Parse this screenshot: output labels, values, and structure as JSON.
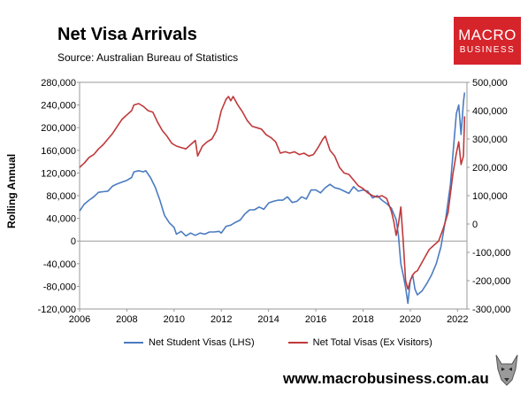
{
  "header": {
    "title": "Net Visa Arrivals",
    "subtitle": "Source: Australian Bureau of Statistics"
  },
  "logo": {
    "line1": "MACRO",
    "line2": "BUSINESS"
  },
  "footer": {
    "url": "www.macrobusiness.com.au"
  },
  "colors": {
    "student": "#4a7cc0",
    "total": "#c0393b",
    "logo": "#d6242b"
  },
  "chart_data": {
    "type": "line",
    "title": "Net Visa Arrivals",
    "ylabel": "Rolling Annual",
    "ylim_left": [
      -120000,
      280000
    ],
    "ylim_right": [
      -300000,
      500000
    ],
    "xlim": [
      2006,
      2022.4
    ],
    "x_ticks": [
      "2006",
      "2008",
      "2010",
      "2012",
      "2014",
      "2016",
      "2018",
      "2020",
      "2022"
    ],
    "y_ticks_left": [
      "280,000",
      "240,000",
      "200,000",
      "160,000",
      "120,000",
      "80,000",
      "40,000",
      "0",
      "-40,000",
      "-80,000",
      "-120,000"
    ],
    "y_ticks_right": [
      "500,000",
      "400,000",
      "300,000",
      "200,000",
      "100,000",
      "0",
      "-100,000",
      "-200,000",
      "-300,000"
    ],
    "legend_position": "bottom",
    "series": [
      {
        "name": "Net Student Visas (LHS)",
        "axis": "left",
        "points": [
          [
            2006.0,
            53000
          ],
          [
            2006.2,
            65000
          ],
          [
            2006.4,
            72000
          ],
          [
            2006.6,
            78000
          ],
          [
            2006.8,
            86000
          ],
          [
            2007.0,
            87000
          ],
          [
            2007.2,
            88000
          ],
          [
            2007.4,
            97000
          ],
          [
            2007.6,
            101000
          ],
          [
            2007.8,
            104000
          ],
          [
            2008.0,
            107000
          ],
          [
            2008.2,
            112000
          ],
          [
            2008.3,
            122000
          ],
          [
            2008.5,
            124000
          ],
          [
            2008.7,
            122000
          ],
          [
            2008.8,
            124000
          ],
          [
            2009.0,
            112000
          ],
          [
            2009.2,
            95000
          ],
          [
            2009.4,
            72000
          ],
          [
            2009.5,
            58000
          ],
          [
            2009.6,
            45000
          ],
          [
            2009.8,
            32000
          ],
          [
            2010.0,
            24000
          ],
          [
            2010.1,
            12000
          ],
          [
            2010.3,
            17000
          ],
          [
            2010.5,
            9000
          ],
          [
            2010.7,
            14000
          ],
          [
            2010.9,
            10000
          ],
          [
            2011.1,
            14000
          ],
          [
            2011.3,
            12000
          ],
          [
            2011.5,
            16000
          ],
          [
            2011.7,
            16000
          ],
          [
            2011.9,
            17000
          ],
          [
            2012.0,
            14000
          ],
          [
            2012.2,
            26000
          ],
          [
            2012.4,
            28000
          ],
          [
            2012.6,
            33000
          ],
          [
            2012.8,
            37000
          ],
          [
            2013.0,
            48000
          ],
          [
            2013.2,
            55000
          ],
          [
            2013.4,
            55000
          ],
          [
            2013.6,
            60000
          ],
          [
            2013.8,
            56000
          ],
          [
            2014.0,
            67000
          ],
          [
            2014.2,
            70000
          ],
          [
            2014.4,
            72000
          ],
          [
            2014.6,
            72000
          ],
          [
            2014.8,
            78000
          ],
          [
            2015.0,
            68000
          ],
          [
            2015.2,
            70000
          ],
          [
            2015.4,
            78000
          ],
          [
            2015.6,
            74000
          ],
          [
            2015.8,
            90000
          ],
          [
            2016.0,
            90000
          ],
          [
            2016.2,
            85000
          ],
          [
            2016.4,
            94000
          ],
          [
            2016.6,
            100000
          ],
          [
            2016.8,
            94000
          ],
          [
            2017.0,
            92000
          ],
          [
            2017.2,
            88000
          ],
          [
            2017.4,
            84000
          ],
          [
            2017.6,
            96000
          ],
          [
            2017.8,
            88000
          ],
          [
            2018.0,
            90000
          ],
          [
            2018.2,
            88000
          ],
          [
            2018.4,
            76000
          ],
          [
            2018.6,
            80000
          ],
          [
            2018.8,
            72000
          ],
          [
            2019.0,
            66000
          ],
          [
            2019.2,
            58000
          ],
          [
            2019.4,
            38000
          ],
          [
            2019.5,
            10000
          ],
          [
            2019.6,
            -40000
          ],
          [
            2019.7,
            -60000
          ],
          [
            2019.8,
            -82000
          ],
          [
            2019.9,
            -110000
          ],
          [
            2020.0,
            -70000
          ],
          [
            2020.1,
            -60000
          ],
          [
            2020.2,
            -85000
          ],
          [
            2020.3,
            -95000
          ],
          [
            2020.5,
            -88000
          ],
          [
            2020.7,
            -75000
          ],
          [
            2020.9,
            -60000
          ],
          [
            2021.1,
            -40000
          ],
          [
            2021.3,
            -10000
          ],
          [
            2021.5,
            40000
          ],
          [
            2021.7,
            100000
          ],
          [
            2021.85,
            175000
          ],
          [
            2021.95,
            225000
          ],
          [
            2022.05,
            240000
          ],
          [
            2022.15,
            188000
          ],
          [
            2022.25,
            245000
          ],
          [
            2022.3,
            262000
          ]
        ]
      },
      {
        "name": "Net Total Visas (Ex Visitors)",
        "axis": "right",
        "points": [
          [
            2006.0,
            200000
          ],
          [
            2006.2,
            215000
          ],
          [
            2006.4,
            235000
          ],
          [
            2006.6,
            245000
          ],
          [
            2006.8,
            265000
          ],
          [
            2007.0,
            280000
          ],
          [
            2007.2,
            300000
          ],
          [
            2007.4,
            320000
          ],
          [
            2007.6,
            345000
          ],
          [
            2007.8,
            370000
          ],
          [
            2008.0,
            385000
          ],
          [
            2008.2,
            400000
          ],
          [
            2008.3,
            420000
          ],
          [
            2008.5,
            425000
          ],
          [
            2008.7,
            415000
          ],
          [
            2008.9,
            400000
          ],
          [
            2009.1,
            395000
          ],
          [
            2009.3,
            360000
          ],
          [
            2009.5,
            330000
          ],
          [
            2009.7,
            310000
          ],
          [
            2009.9,
            285000
          ],
          [
            2010.1,
            275000
          ],
          [
            2010.3,
            270000
          ],
          [
            2010.5,
            265000
          ],
          [
            2010.7,
            280000
          ],
          [
            2010.9,
            295000
          ],
          [
            2011.0,
            240000
          ],
          [
            2011.2,
            275000
          ],
          [
            2011.4,
            290000
          ],
          [
            2011.6,
            300000
          ],
          [
            2011.8,
            330000
          ],
          [
            2012.0,
            400000
          ],
          [
            2012.2,
            440000
          ],
          [
            2012.3,
            450000
          ],
          [
            2012.4,
            435000
          ],
          [
            2012.5,
            450000
          ],
          [
            2012.7,
            420000
          ],
          [
            2012.9,
            395000
          ],
          [
            2013.1,
            365000
          ],
          [
            2013.3,
            345000
          ],
          [
            2013.5,
            340000
          ],
          [
            2013.7,
            335000
          ],
          [
            2013.9,
            315000
          ],
          [
            2014.1,
            305000
          ],
          [
            2014.3,
            290000
          ],
          [
            2014.5,
            250000
          ],
          [
            2014.7,
            255000
          ],
          [
            2014.9,
            250000
          ],
          [
            2015.1,
            255000
          ],
          [
            2015.3,
            245000
          ],
          [
            2015.5,
            250000
          ],
          [
            2015.7,
            240000
          ],
          [
            2015.9,
            245000
          ],
          [
            2016.1,
            270000
          ],
          [
            2016.3,
            300000
          ],
          [
            2016.4,
            310000
          ],
          [
            2016.6,
            260000
          ],
          [
            2016.8,
            240000
          ],
          [
            2017.0,
            200000
          ],
          [
            2017.2,
            180000
          ],
          [
            2017.4,
            175000
          ],
          [
            2017.6,
            155000
          ],
          [
            2017.8,
            135000
          ],
          [
            2018.0,
            125000
          ],
          [
            2018.2,
            110000
          ],
          [
            2018.4,
            100000
          ],
          [
            2018.6,
            95000
          ],
          [
            2018.8,
            100000
          ],
          [
            2019.0,
            90000
          ],
          [
            2019.2,
            45000
          ],
          [
            2019.3,
            10000
          ],
          [
            2019.4,
            -40000
          ],
          [
            2019.5,
            0
          ],
          [
            2019.6,
            60000
          ],
          [
            2019.7,
            -60000
          ],
          [
            2019.8,
            -200000
          ],
          [
            2019.9,
            -230000
          ],
          [
            2020.0,
            -200000
          ],
          [
            2020.1,
            -180000
          ],
          [
            2020.2,
            -170000
          ],
          [
            2020.3,
            -165000
          ],
          [
            2020.4,
            -150000
          ],
          [
            2020.6,
            -120000
          ],
          [
            2020.8,
            -90000
          ],
          [
            2021.0,
            -75000
          ],
          [
            2021.2,
            -60000
          ],
          [
            2021.4,
            -15000
          ],
          [
            2021.6,
            40000
          ],
          [
            2021.8,
            175000
          ],
          [
            2021.95,
            250000
          ],
          [
            2022.05,
            290000
          ],
          [
            2022.15,
            210000
          ],
          [
            2022.25,
            240000
          ],
          [
            2022.3,
            380000
          ]
        ]
      }
    ]
  }
}
